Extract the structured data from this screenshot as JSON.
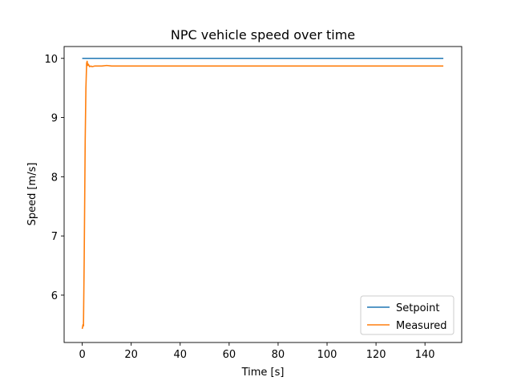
{
  "chart_data": {
    "type": "line",
    "title": "NPC vehicle speed over time",
    "xlabel": "Time [s]",
    "ylabel": "Speed [m/s]",
    "xlim": [
      -7.4,
      155
    ],
    "ylim": [
      5.2,
      10.2
    ],
    "xticks": [
      0,
      20,
      40,
      60,
      80,
      100,
      120,
      140
    ],
    "yticks": [
      6,
      7,
      8,
      9,
      10
    ],
    "grid": false,
    "legend_position": "lower-right",
    "series": [
      {
        "name": "Setpoint",
        "color": "#1f77b4",
        "x": [
          0,
          147.5
        ],
        "y": [
          10.0,
          10.0
        ]
      },
      {
        "name": "Measured",
        "color": "#ff7f0e",
        "x": [
          0,
          0.3,
          0.5,
          0.8,
          1.0,
          1.2,
          1.5,
          1.8,
          2.0,
          2.2,
          2.5,
          3.0,
          3.5,
          4.0,
          5.0,
          6.0,
          8.0,
          10.0,
          12.0,
          20.0,
          40.0,
          80.0,
          120.0,
          147.5
        ],
        "y": [
          5.43,
          5.5,
          5.48,
          6.6,
          7.6,
          8.6,
          9.5,
          9.92,
          9.95,
          9.88,
          9.9,
          9.86,
          9.87,
          9.86,
          9.87,
          9.87,
          9.87,
          9.88,
          9.87,
          9.87,
          9.87,
          9.87,
          9.87,
          9.87
        ]
      }
    ]
  }
}
